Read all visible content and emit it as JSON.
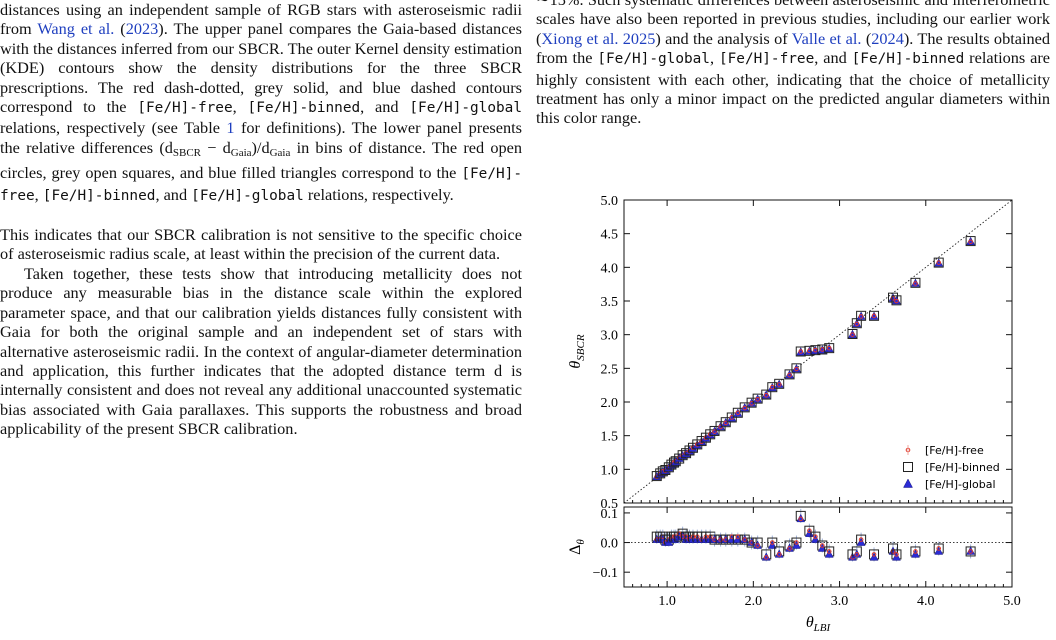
{
  "left_column": {
    "caption": {
      "s1": "distances using an independent sample of RGB stars with asteroseismic radii from ",
      "ref_wang": "Wang et al.",
      "s2": " (",
      "ref_wang_year": "2023",
      "s3": "). The upper panel compares the Gaia-based distances with the distances inferred from our SBCR. The outer Kernel density estimation (KDE) contours show the density distributions for the three SBCR prescriptions. The red dash-dotted, grey solid, and blue dashed contours correspond to the ",
      "m_free": "[Fe/H]-free",
      "s4": ", ",
      "m_binned": "[Fe/H]-binned",
      "s5": ", and ",
      "m_global": "[Fe/H]-global",
      "s6": " relations, respectively (see Table ",
      "ref_table": "1",
      "s7": " for definitions). The lower panel presents the relative differences (d",
      "sub_sbcr": "SBCR",
      "s8": " − d",
      "sub_gaia": "Gaia",
      "s9": ")/d",
      "sub_gaia2": "Gaia",
      "s10": " in bins of distance. The red open circles, grey open squares, and blue filled triangles correspond to the ",
      "m_free2": "[Fe/H]-free",
      "s11": ", ",
      "m_binned2": "[Fe/H]-binned",
      "s12": ", and ",
      "m_global2": "[Fe/H]-global",
      "s13": " relations, respectively."
    },
    "para1": "This indicates that our SBCR calibration is not sensitive to the specific choice of asteroseismic radius scale, at least within the precision of the current data.",
    "para2": "Taken together, these tests show that introducing metallicity does not produce any measurable bias in the distance scale within the explored parameter space, and that our calibration yields distances fully consistent with Gaia for both the original sample and an independent set of stars with alternative asteroseismic radii. In the context of angular-diameter determination and application, this further indicates that the adopted distance term d is internally consistent and does not reveal any additional unaccounted systematic bias associated with Gaia parallaxes. This supports the robustness and broad applicability of the present SBCR calibration."
  },
  "right_column": {
    "r1": "∼15%. Such systematic differences between asteroseismic and interferometric scales have also been reported in previous studies, including our earlier work (",
    "ref_xiong": "Xiong et al. 2025",
    "r2": ") and the analysis of ",
    "ref_valle": "Valle et al.",
    "r3": " (",
    "ref_valle_year": "2024",
    "r4": "). The results obtained from the ",
    "m_global": "[Fe/H]-global",
    "r5": ", ",
    "m_free": "[Fe/H]-free",
    "r6": ", and ",
    "m_binned": "[Fe/H]-binned",
    "r7": " relations are highly consistent with each other, indicating that the choice of metallicity treatment has only a minor impact on the predicted angular diameters within this color range."
  },
  "figure": {
    "upper_ylabel_main": "θ",
    "upper_ylabel_sub": "SBCR",
    "lower_ylabel_main": "Δ",
    "lower_ylabel_sub": "θ",
    "xlabel_main": "θ",
    "xlabel_sub": "LBI",
    "upper_ytick_labels": [
      "5.0",
      "4.5",
      "4.0",
      "3.5",
      "3.0",
      "2.5",
      "2.0",
      "1.5",
      "1.0",
      "0.5"
    ],
    "lower_ytick_labels": [
      "0.1",
      "0.0",
      "−0.1"
    ],
    "xtick_labels": [
      "1.0",
      "2.0",
      "3.0",
      "4.0",
      "5.0"
    ],
    "legend": [
      "[Fe/H]-free",
      "[Fe/H]-binned",
      "[Fe/H]-global"
    ],
    "colors": {
      "free": "#e0392b",
      "binned": "#222222",
      "global": "#2b2bd6",
      "one_to_one": "#222222",
      "errorbar": "#9fb0d8"
    }
  },
  "chart_data": {
    "type": "scatter",
    "xlabel": "θ_LBI",
    "ylabel": "θ_SBCR",
    "xlim": [
      0.5,
      5.0
    ],
    "ylim": [
      0.5,
      5.0
    ],
    "lower_ylabel": "Δ_θ",
    "lower_ylim": [
      -0.15,
      0.12
    ],
    "one_to_one_line": true,
    "legend_position": "lower-right",
    "x": [
      0.88,
      0.92,
      0.95,
      0.98,
      1.02,
      1.05,
      1.08,
      1.1,
      1.14,
      1.18,
      1.22,
      1.26,
      1.3,
      1.35,
      1.4,
      1.45,
      1.5,
      1.55,
      1.62,
      1.68,
      1.75,
      1.82,
      1.9,
      1.98,
      2.05,
      2.15,
      2.22,
      2.3,
      2.42,
      2.5,
      2.55,
      2.65,
      2.72,
      2.8,
      2.88,
      3.15,
      3.2,
      3.25,
      3.4,
      3.62,
      3.66,
      3.88,
      4.15,
      4.52
    ],
    "series": [
      {
        "name": "[Fe/H]-free",
        "y": [
          0.89,
          0.93,
          0.97,
          0.98,
          1.03,
          1.06,
          1.1,
          1.12,
          1.17,
          1.2,
          1.24,
          1.27,
          1.32,
          1.37,
          1.41,
          1.47,
          1.52,
          1.56,
          1.63,
          1.69,
          1.77,
          1.84,
          1.91,
          1.98,
          2.04,
          2.1,
          2.22,
          2.26,
          2.4,
          2.49,
          2.75,
          2.76,
          2.77,
          2.78,
          2.8,
          3.0,
          3.16,
          3.27,
          3.28,
          3.54,
          3.5,
          3.76,
          4.07,
          4.38
        ],
        "delta": [
          0.01,
          0.01,
          0.02,
          0.0,
          0.01,
          0.01,
          0.02,
          0.02,
          0.03,
          0.02,
          0.02,
          0.01,
          0.02,
          0.02,
          0.01,
          0.02,
          0.02,
          0.01,
          0.01,
          0.01,
          0.02,
          0.02,
          0.01,
          0.0,
          -0.01,
          -0.05,
          0.0,
          -0.04,
          -0.02,
          0.0,
          0.08,
          0.04,
          0.02,
          -0.01,
          -0.03,
          -0.05,
          -0.04,
          0.01,
          -0.04,
          -0.03,
          -0.04,
          -0.03,
          -0.02,
          -0.03
        ]
      },
      {
        "name": "[Fe/H]-binned",
        "y": [
          0.9,
          0.94,
          0.97,
          0.99,
          1.03,
          1.07,
          1.1,
          1.12,
          1.16,
          1.21,
          1.24,
          1.28,
          1.32,
          1.37,
          1.42,
          1.47,
          1.52,
          1.57,
          1.64,
          1.7,
          1.77,
          1.84,
          1.92,
          1.99,
          2.05,
          2.11,
          2.22,
          2.27,
          2.41,
          2.5,
          2.75,
          2.76,
          2.77,
          2.78,
          2.8,
          3.01,
          3.17,
          3.28,
          3.28,
          3.55,
          3.51,
          3.77,
          4.07,
          4.39
        ],
        "delta": [
          0.02,
          0.02,
          0.02,
          0.01,
          0.01,
          0.02,
          0.02,
          0.02,
          0.02,
          0.03,
          0.02,
          0.02,
          0.02,
          0.02,
          0.02,
          0.02,
          0.02,
          0.01,
          0.01,
          0.01,
          0.01,
          0.01,
          0.01,
          0.0,
          0.0,
          -0.04,
          0.0,
          -0.03,
          -0.01,
          0.0,
          0.09,
          0.04,
          0.02,
          -0.01,
          -0.03,
          -0.04,
          -0.03,
          0.01,
          -0.04,
          -0.02,
          -0.04,
          -0.03,
          -0.02,
          -0.03
        ]
      },
      {
        "name": "[Fe/H]-global",
        "y": [
          0.89,
          0.93,
          0.96,
          0.98,
          1.02,
          1.06,
          1.09,
          1.11,
          1.16,
          1.2,
          1.23,
          1.27,
          1.31,
          1.36,
          1.41,
          1.46,
          1.51,
          1.56,
          1.63,
          1.69,
          1.76,
          1.83,
          1.91,
          1.98,
          2.04,
          2.1,
          2.21,
          2.26,
          2.4,
          2.49,
          2.74,
          2.75,
          2.76,
          2.77,
          2.79,
          3.0,
          3.16,
          3.27,
          3.27,
          3.54,
          3.5,
          3.76,
          4.06,
          4.38
        ],
        "delta": [
          0.01,
          0.01,
          0.01,
          0.0,
          0.0,
          0.01,
          0.01,
          0.01,
          0.02,
          0.02,
          0.01,
          0.01,
          0.01,
          0.01,
          0.01,
          0.01,
          0.01,
          0.01,
          0.01,
          0.01,
          0.01,
          0.01,
          0.01,
          0.0,
          -0.01,
          -0.05,
          -0.01,
          -0.04,
          -0.02,
          -0.01,
          0.08,
          0.03,
          0.01,
          -0.02,
          -0.04,
          -0.05,
          -0.04,
          0.0,
          -0.05,
          -0.03,
          -0.05,
          -0.04,
          -0.03,
          -0.03
        ]
      }
    ]
  }
}
